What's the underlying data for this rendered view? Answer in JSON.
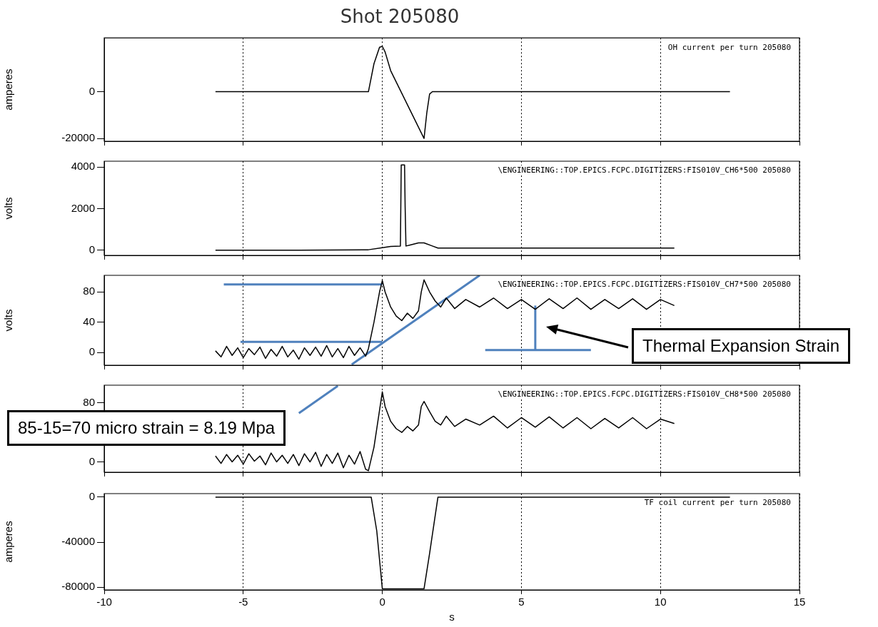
{
  "chart_data": [
    {
      "type": "line",
      "title": "Shot 205080",
      "ylabel": "amperes",
      "annotations": [
        "OH current per turn 205080"
      ],
      "grid": "x",
      "tick_labels": "y",
      "xlim": [
        -10,
        15
      ],
      "xticks": [
        -10,
        -5,
        0,
        5,
        10,
        15
      ],
      "ylim": [
        -21200,
        23000
      ],
      "yticks": [
        -20000,
        0
      ],
      "series": [
        {
          "color": "#000000",
          "x": [
            -6,
            -0.5,
            -0.3,
            -0.1,
            0,
            0.1,
            0.3,
            1.5,
            1.6,
            1.7,
            1.8,
            12.5
          ],
          "values": [
            0,
            0,
            12000,
            19000,
            19400,
            17000,
            9000,
            -20000,
            -9000,
            -1000,
            0,
            0
          ]
        }
      ]
    },
    {
      "type": "line",
      "ylabel": "volts",
      "annotations": [
        "\\ENGINEERING::TOP.EPICS.FCPC.DIGITIZERS:FIS010V_CH6*500 205080"
      ],
      "grid": "x",
      "tick_labels": "y",
      "xlim": [
        -10,
        15
      ],
      "xticks": [
        -10,
        -5,
        0,
        5,
        10,
        15
      ],
      "ylim": [
        -250,
        4280
      ],
      "yticks": [
        0,
        2000,
        4000
      ],
      "series": [
        {
          "color": "#000000",
          "x": [
            -6,
            -3,
            -0.5,
            0,
            0.3,
            0.65,
            0.68,
            0.72,
            0.8,
            0.82,
            0.85,
            1.0,
            1.3,
            1.5,
            1.8,
            2,
            10.5
          ],
          "values": [
            0,
            0,
            20,
            120,
            180,
            200,
            4100,
            4100,
            4100,
            2100,
            200,
            250,
            350,
            350,
            200,
            100,
            100
          ]
        }
      ]
    },
    {
      "type": "line",
      "ylabel": "volts",
      "annotations": [
        "\\ENGINEERING::TOP.EPICS.FCPC.DIGITIZERS:FIS010V_CH7*500 205080",
        "Thermal Expansion Strain"
      ],
      "grid": "x",
      "tick_labels": "y",
      "xlim": [
        -10,
        15
      ],
      "xticks": [
        -10,
        -5,
        0,
        5,
        10,
        15
      ],
      "ylim": [
        -17,
        102
      ],
      "yticks": [
        0,
        40,
        80
      ],
      "series": [
        {
          "color": "#000000",
          "x": [
            -6,
            -5.8,
            -5.6,
            -5.4,
            -5.2,
            -5,
            -4.8,
            -4.6,
            -4.4,
            -4.2,
            -4,
            -3.8,
            -3.6,
            -3.4,
            -3.2,
            -3,
            -2.8,
            -2.6,
            -2.4,
            -2.2,
            -2,
            -1.8,
            -1.6,
            -1.4,
            -1.2,
            -1,
            -0.8,
            -0.6,
            -0.5,
            -0.3,
            -0.1,
            0,
            0.1,
            0.3,
            0.5,
            0.7,
            0.9,
            1.1,
            1.3,
            1.4,
            1.5,
            1.7,
            1.9,
            2.1,
            2.3,
            2.6,
            3,
            3.5,
            4,
            4.5,
            5,
            5.5,
            6,
            6.5,
            7,
            7.5,
            8,
            8.5,
            9,
            9.5,
            10,
            10.5
          ],
          "values": [
            2,
            -6,
            8,
            -4,
            6,
            -7,
            5,
            -3,
            7,
            -8,
            4,
            -5,
            8,
            -6,
            3,
            -9,
            6,
            -4,
            7,
            -5,
            9,
            -6,
            5,
            -7,
            8,
            -4,
            6,
            -5,
            5,
            40,
            80,
            95,
            80,
            60,
            48,
            42,
            52,
            45,
            55,
            80,
            96,
            80,
            68,
            60,
            72,
            58,
            70,
            60,
            72,
            58,
            70,
            57,
            71,
            58,
            72,
            57,
            70,
            58,
            71,
            57,
            70,
            62
          ]
        },
        {
          "color": "#4f81bd",
          "x": [
            -5.7,
            0
          ],
          "values": [
            90,
            90
          ]
        },
        {
          "color": "#4f81bd",
          "x": [
            -5.1,
            0
          ],
          "values": [
            14,
            14
          ]
        },
        {
          "color": "#4f81bd",
          "x": [
            -1.1,
            3.5
          ],
          "values": [
            -16,
            102
          ]
        },
        {
          "color": "#4f81bd",
          "x": [
            3.7,
            7.5
          ],
          "values": [
            3,
            3
          ]
        },
        {
          "color": "#4f81bd",
          "x": [
            5.5,
            5.5
          ],
          "values": [
            3,
            62
          ]
        }
      ]
    },
    {
      "type": "line",
      "annotations": [
        "\\ENGINEERING::TOP.EPICS.FCPC.DIGITIZERS:FIS010V_CH8*500 205080",
        "85-15=70 micro strain = 8.19  Mpa"
      ],
      "grid": "x",
      "tick_labels": "y",
      "xlim": [
        -10,
        15
      ],
      "xticks": [
        -10,
        -5,
        0,
        5,
        10,
        15
      ],
      "ylim": [
        -14,
        104
      ],
      "yticks": [
        0,
        80
      ],
      "series": [
        {
          "color": "#000000",
          "x": [
            -6,
            -5.8,
            -5.6,
            -5.4,
            -5.2,
            -5,
            -4.8,
            -4.6,
            -4.4,
            -4.2,
            -4,
            -3.8,
            -3.6,
            -3.4,
            -3.2,
            -3,
            -2.8,
            -2.6,
            -2.4,
            -2.2,
            -2,
            -1.8,
            -1.6,
            -1.4,
            -1.2,
            -1,
            -0.8,
            -0.6,
            -0.5,
            -0.3,
            -0.1,
            0,
            0.1,
            0.3,
            0.5,
            0.7,
            0.9,
            1.1,
            1.3,
            1.4,
            1.5,
            1.7,
            1.9,
            2.1,
            2.3,
            2.6,
            3,
            3.5,
            4,
            4.5,
            5,
            5.5,
            6,
            6.5,
            7,
            7.5,
            8,
            8.5,
            9,
            9.5,
            10,
            10.5
          ],
          "values": [
            8,
            -2,
            10,
            0,
            9,
            -3,
            11,
            1,
            8,
            -4,
            12,
            0,
            9,
            -2,
            10,
            -5,
            11,
            0,
            13,
            -6,
            10,
            -2,
            12,
            -8,
            9,
            -3,
            14,
            -10,
            -12,
            20,
            70,
            95,
            75,
            55,
            45,
            40,
            48,
            42,
            50,
            75,
            82,
            68,
            55,
            50,
            62,
            48,
            58,
            50,
            62,
            46,
            60,
            47,
            61,
            46,
            60,
            45,
            59,
            46,
            60,
            45,
            58,
            52
          ]
        },
        {
          "color": "#4f81bd",
          "x": [
            -3.0,
            -1.6
          ],
          "values": [
            66,
            103
          ]
        }
      ]
    },
    {
      "type": "line",
      "ylabel": "amperes",
      "xlabel": "s",
      "annotations": [
        "TF coil current per turn 205080"
      ],
      "grid": "x",
      "xlim": [
        -10,
        15
      ],
      "xticks": [
        -10,
        -5,
        0,
        5,
        10,
        15
      ],
      "ylim": [
        -82500,
        3150
      ],
      "yticks": [
        -80000,
        -40000,
        0
      ],
      "series": [
        {
          "color": "#000000",
          "x": [
            -6,
            -0.4,
            -0.2,
            0,
            1.5,
            1.7,
            2,
            12.5
          ],
          "values": [
            0,
            0,
            -30000,
            -81500,
            -81500,
            -50000,
            0,
            0
          ]
        }
      ]
    }
  ]
}
